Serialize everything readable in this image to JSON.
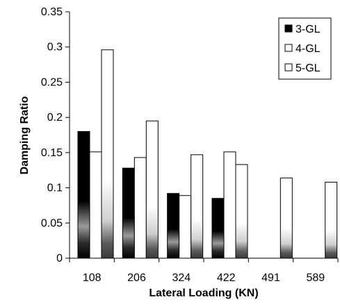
{
  "chart_data": {
    "type": "bar",
    "xlabel": "Lateral Loading (KN)",
    "ylabel": "Damping Ratio",
    "ylim": [
      0,
      0.35
    ],
    "yticks": [
      "0",
      "0.05",
      "0.1",
      "0.15",
      "0.2",
      "0.25",
      "0.3",
      "0.35"
    ],
    "categories": [
      "108",
      "206",
      "324",
      "422",
      "491",
      "589"
    ],
    "series": [
      {
        "name": "3-GL",
        "fill": "dark-gradient",
        "values": [
          0.18,
          0.128,
          0.092,
          0.085,
          null,
          null
        ]
      },
      {
        "name": "4-GL",
        "fill": "white",
        "values": [
          0.151,
          0.143,
          0.089,
          0.151,
          null,
          null
        ]
      },
      {
        "name": "5-GL",
        "fill": "light-gradient",
        "values": [
          0.296,
          0.195,
          0.147,
          0.133,
          0.114,
          0.108
        ]
      }
    ],
    "legend": {
      "placement": "top-right",
      "items": [
        "3-GL",
        "4-GL",
        "5-GL"
      ]
    },
    "grid": false
  }
}
